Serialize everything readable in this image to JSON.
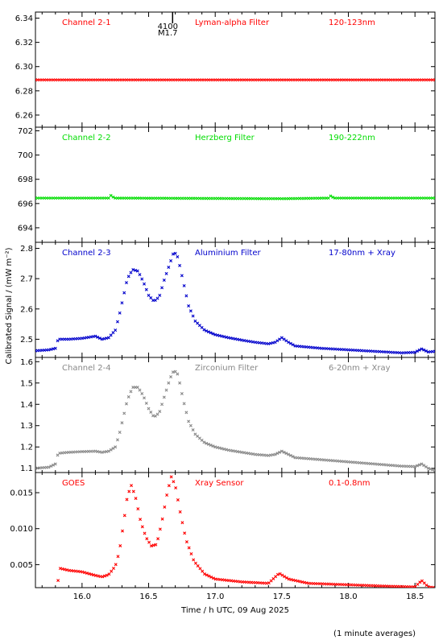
{
  "chart_data": {
    "type": "scatter",
    "xlabel": "Time / h UTC, 09 Aug 2025",
    "ylabel": "Calibrated Signal / (mW m⁻²)",
    "xlim": [
      15.65,
      18.65
    ],
    "xticks": [
      "16.0",
      "16.5",
      "17.0",
      "17.5",
      "18.0",
      "18.5"
    ],
    "footnote": "(1 minute averages)",
    "marker": {
      "label_top": "4100",
      "label_bottom": "M1.7",
      "x": 16.68
    },
    "panels": [
      {
        "name": "Channel 2-1",
        "filter": "Lyman-alpha Filter",
        "band": "120-123nm",
        "color": "#ff0000",
        "ylim": [
          6.25,
          6.345
        ],
        "yticks": [
          "6.26",
          "6.28",
          "6.30",
          "6.32",
          "6.34"
        ],
        "points": [
          [
            15.65,
            6.289
          ],
          [
            18.65,
            6.289
          ]
        ],
        "kind": "flat"
      },
      {
        "name": "Channel 2-2",
        "filter": "Herzberg Filter",
        "band": "190-222nm",
        "color": "#00dd00",
        "ylim": [
          692.8,
          702.3
        ],
        "yticks": [
          "694",
          "696",
          "698",
          "700",
          "702"
        ],
        "points": [
          [
            15.65,
            696.45
          ],
          [
            16.2,
            696.45
          ],
          [
            16.22,
            696.7
          ],
          [
            16.24,
            696.45
          ],
          [
            17.5,
            696.4
          ],
          [
            17.85,
            696.45
          ],
          [
            17.87,
            696.65
          ],
          [
            17.89,
            696.45
          ],
          [
            18.65,
            696.45
          ]
        ],
        "kind": "flat"
      },
      {
        "name": "Channel 2-3",
        "filter": "Aluminium Filter",
        "band": "17-80nm + Xray",
        "color": "#0000cc",
        "ylim": [
          2.44,
          2.82
        ],
        "yticks": [
          "2.5",
          "2.6",
          "2.7",
          "2.8"
        ],
        "points": [
          [
            15.65,
            2.462
          ],
          [
            15.75,
            2.465
          ],
          [
            15.8,
            2.47
          ],
          [
            15.82,
            2.5
          ],
          [
            15.9,
            2.5
          ],
          [
            16.0,
            2.503
          ],
          [
            16.1,
            2.51
          ],
          [
            16.15,
            2.5
          ],
          [
            16.2,
            2.505
          ],
          [
            16.25,
            2.53
          ],
          [
            16.28,
            2.58
          ],
          [
            16.31,
            2.64
          ],
          [
            16.34,
            2.7
          ],
          [
            16.38,
            2.73
          ],
          [
            16.42,
            2.725
          ],
          [
            16.46,
            2.69
          ],
          [
            16.5,
            2.645
          ],
          [
            16.54,
            2.625
          ],
          [
            16.58,
            2.64
          ],
          [
            16.62,
            2.7
          ],
          [
            16.66,
            2.75
          ],
          [
            16.69,
            2.79
          ],
          [
            16.72,
            2.77
          ],
          [
            16.76,
            2.69
          ],
          [
            16.8,
            2.61
          ],
          [
            16.85,
            2.56
          ],
          [
            16.92,
            2.53
          ],
          [
            17.0,
            2.515
          ],
          [
            17.1,
            2.505
          ],
          [
            17.2,
            2.497
          ],
          [
            17.3,
            2.49
          ],
          [
            17.4,
            2.485
          ],
          [
            17.45,
            2.49
          ],
          [
            17.5,
            2.505
          ],
          [
            17.55,
            2.49
          ],
          [
            17.6,
            2.478
          ],
          [
            17.8,
            2.47
          ],
          [
            18.0,
            2.465
          ],
          [
            18.2,
            2.46
          ],
          [
            18.4,
            2.455
          ],
          [
            18.5,
            2.457
          ],
          [
            18.55,
            2.468
          ],
          [
            18.6,
            2.458
          ],
          [
            18.65,
            2.46
          ]
        ],
        "kind": "series"
      },
      {
        "name": "Channel 2-4",
        "filter": "Zirconium Filter",
        "band": "6-20nm + Xray",
        "color": "#888888",
        "ylim": [
          1.08,
          1.62
        ],
        "yticks": [
          "1.1",
          "1.2",
          "1.3",
          "1.4",
          "1.5",
          "1.6"
        ],
        "points": [
          [
            15.65,
            1.1
          ],
          [
            15.75,
            1.105
          ],
          [
            15.8,
            1.12
          ],
          [
            15.82,
            1.17
          ],
          [
            15.9,
            1.175
          ],
          [
            16.0,
            1.178
          ],
          [
            16.1,
            1.18
          ],
          [
            16.15,
            1.175
          ],
          [
            16.2,
            1.18
          ],
          [
            16.25,
            1.2
          ],
          [
            16.28,
            1.26
          ],
          [
            16.31,
            1.34
          ],
          [
            16.34,
            1.42
          ],
          [
            16.38,
            1.48
          ],
          [
            16.42,
            1.48
          ],
          [
            16.46,
            1.44
          ],
          [
            16.5,
            1.38
          ],
          [
            16.54,
            1.34
          ],
          [
            16.58,
            1.36
          ],
          [
            16.62,
            1.44
          ],
          [
            16.66,
            1.52
          ],
          [
            16.69,
            1.56
          ],
          [
            16.72,
            1.54
          ],
          [
            16.76,
            1.42
          ],
          [
            16.8,
            1.32
          ],
          [
            16.85,
            1.26
          ],
          [
            16.92,
            1.22
          ],
          [
            17.0,
            1.2
          ],
          [
            17.1,
            1.185
          ],
          [
            17.2,
            1.175
          ],
          [
            17.3,
            1.165
          ],
          [
            17.4,
            1.16
          ],
          [
            17.45,
            1.165
          ],
          [
            17.5,
            1.18
          ],
          [
            17.55,
            1.165
          ],
          [
            17.6,
            1.15
          ],
          [
            17.8,
            1.14
          ],
          [
            18.0,
            1.13
          ],
          [
            18.2,
            1.12
          ],
          [
            18.4,
            1.11
          ],
          [
            18.5,
            1.108
          ],
          [
            18.55,
            1.12
          ],
          [
            18.6,
            1.1
          ],
          [
            18.65,
            1.09
          ]
        ],
        "kind": "series"
      },
      {
        "name": "GOES",
        "filter": "Xray Sensor",
        "band": "0.1-0.8nm",
        "color": "#ff0000",
        "ylim": [
          0.0018,
          0.0178
        ],
        "yticks": [
          "0.005",
          "0.010",
          "0.015"
        ],
        "points": [
          [
            15.82,
            0.0028
          ],
          [
            15.83,
            0.0045
          ],
          [
            15.9,
            0.0042
          ],
          [
            16.0,
            0.004
          ],
          [
            16.1,
            0.0035
          ],
          [
            16.15,
            0.0033
          ],
          [
            16.2,
            0.0036
          ],
          [
            16.25,
            0.0048
          ],
          [
            16.28,
            0.0068
          ],
          [
            16.31,
            0.0105
          ],
          [
            16.34,
            0.0145
          ],
          [
            16.37,
            0.016
          ],
          [
            16.4,
            0.0145
          ],
          [
            16.44,
            0.011
          ],
          [
            16.48,
            0.0088
          ],
          [
            16.52,
            0.0076
          ],
          [
            16.56,
            0.0078
          ],
          [
            16.6,
            0.011
          ],
          [
            16.64,
            0.015
          ],
          [
            16.67,
            0.0172
          ],
          [
            16.7,
            0.016
          ],
          [
            16.74,
            0.012
          ],
          [
            16.78,
            0.0085
          ],
          [
            16.84,
            0.0055
          ],
          [
            16.92,
            0.0037
          ],
          [
            17.0,
            0.003
          ],
          [
            17.2,
            0.0026
          ],
          [
            17.4,
            0.0024
          ],
          [
            17.48,
            0.0038
          ],
          [
            17.55,
            0.003
          ],
          [
            17.7,
            0.0024
          ],
          [
            18.0,
            0.0022
          ],
          [
            18.3,
            0.002
          ],
          [
            18.5,
            0.0019
          ],
          [
            18.55,
            0.0028
          ],
          [
            18.6,
            0.0019
          ],
          [
            18.65,
            0.0018
          ]
        ],
        "kind": "series"
      }
    ]
  }
}
